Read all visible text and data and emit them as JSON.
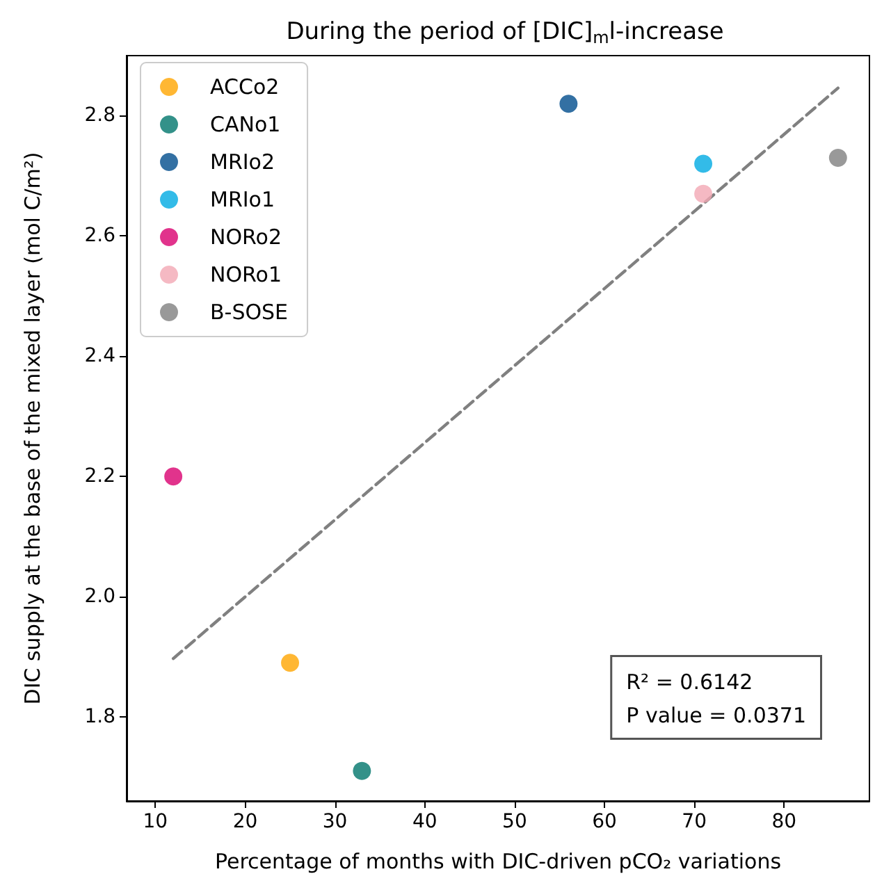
{
  "chart_data": {
    "type": "scatter",
    "title": "During the period of [DIC]$_{m}$l-increase",
    "xlabel": "Percentage of months with DIC-driven pCO₂ variations",
    "ylabel": "DIC supply at the base of the mixed layer (mol C/m²)",
    "series": [
      {
        "name": "ACCo2",
        "color": "#ffa500",
        "x": [
          25
        ],
        "values": [
          1.89
        ]
      },
      {
        "name": "CANo1",
        "color": "#00756b",
        "x": [
          33
        ],
        "values": [
          1.71
        ]
      },
      {
        "name": "MRIo2",
        "color": "#004c8c",
        "x": [
          56
        ],
        "values": [
          2.82
        ]
      },
      {
        "name": "MRIo1",
        "color": "#00aae2",
        "x": [
          71
        ],
        "values": [
          2.72
        ]
      },
      {
        "name": "NORo2",
        "color": "#d9006f",
        "x": [
          12
        ],
        "values": [
          2.2
        ]
      },
      {
        "name": "NORo1",
        "color": "#f2a7b4",
        "x": [
          71
        ],
        "values": [
          2.67
        ]
      },
      {
        "name": "B-SOSE",
        "color": "#808080",
        "x": [
          86
        ],
        "values": [
          2.73
        ]
      },
      {
        "type": "line",
        "color": "#808080",
        "line_style": "dashed",
        "marker": "none",
        "x": [
          12,
          86
        ],
        "values": [
          1.897,
          2.846
        ]
      }
    ],
    "annotations": [
      "R² = 0.6142",
      "P value = 0.0371"
    ],
    "xlim": [
      6.8,
      89.5
    ],
    "xticks": [
      10,
      20,
      30,
      40,
      50,
      60,
      70,
      80
    ],
    "ylim": [
      1.66,
      2.9
    ],
    "yticks": [
      1.8,
      {
        "value": 2,
        "label": "2.0"
      },
      2.2,
      2.4,
      2.6,
      2.8
    ],
    "marker": "circle",
    "grid": false,
    "legend": "top left"
  }
}
